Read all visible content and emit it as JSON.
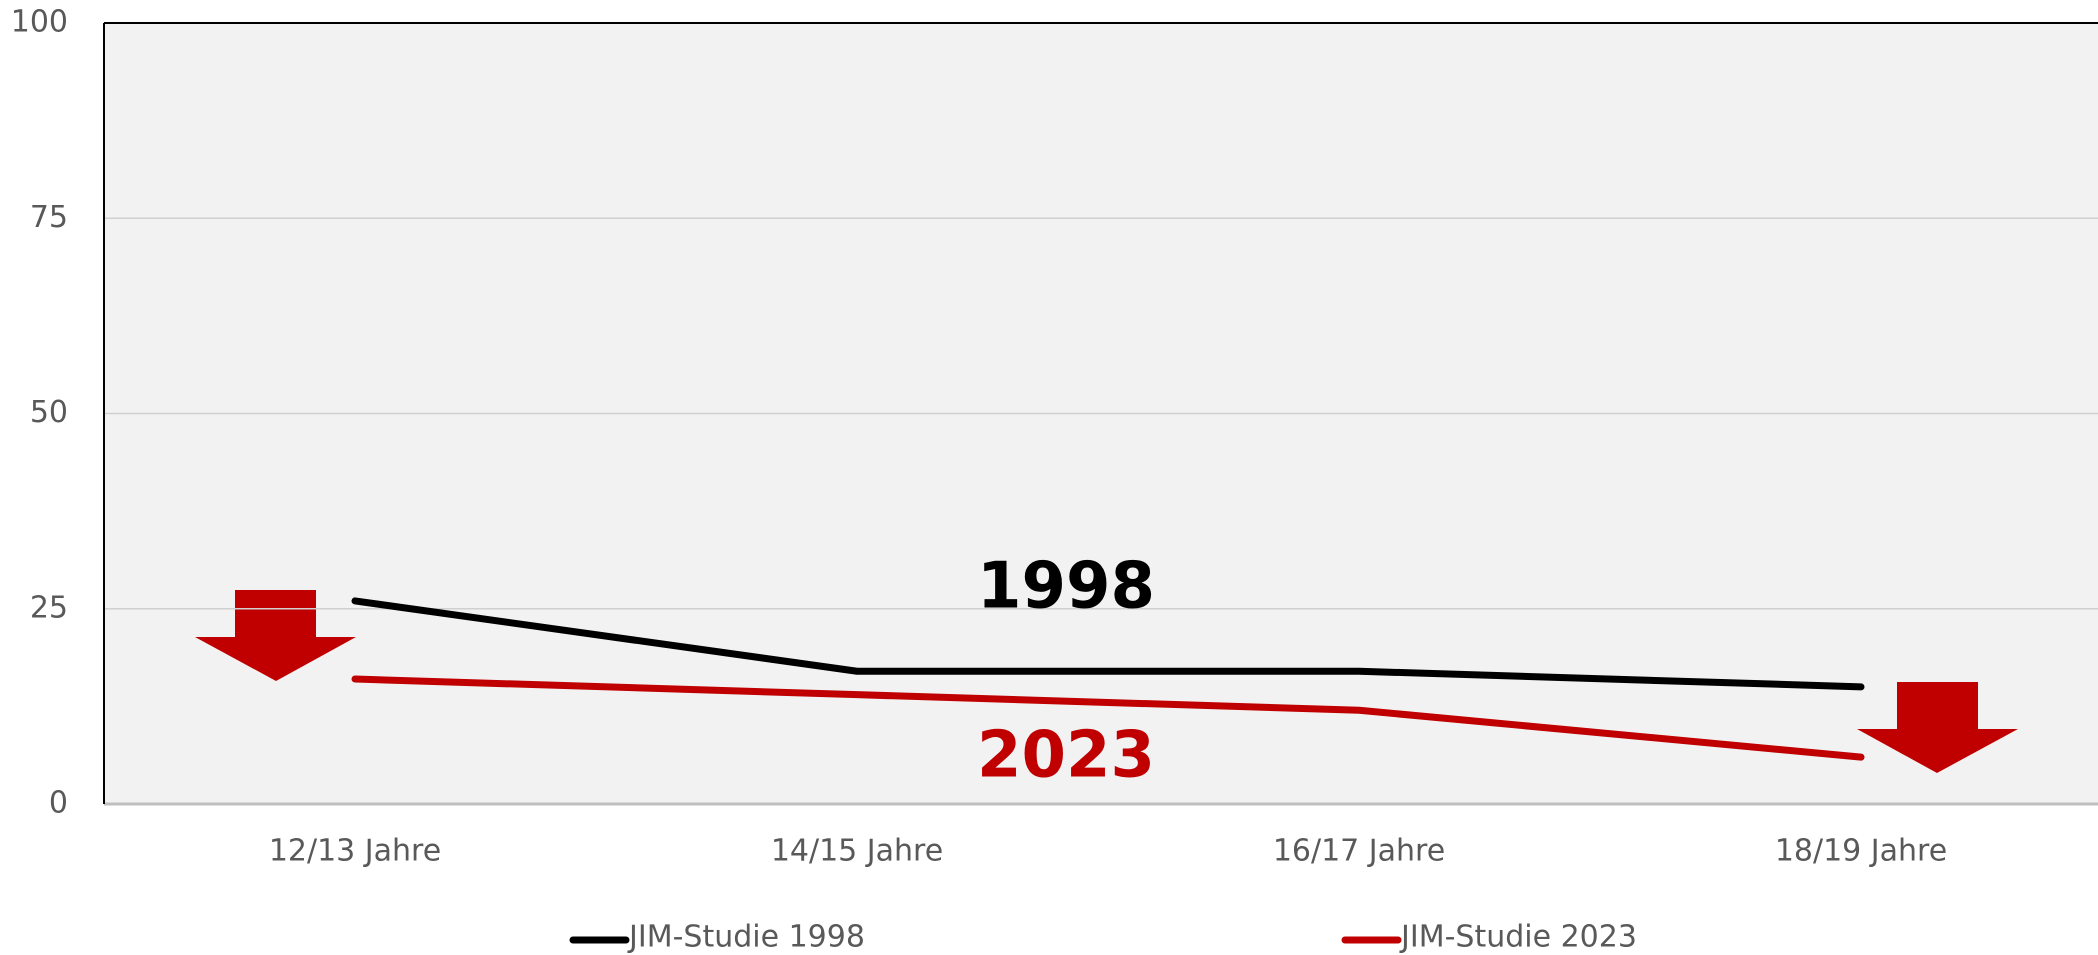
{
  "chart_data": {
    "type": "line",
    "categories": [
      "12/13 Jahre",
      "14/15 Jahre",
      "16/17 Jahre",
      "18/19 Jahre"
    ],
    "series": [
      {
        "name": "JIM-Studie 1998",
        "color": "#000000",
        "values": [
          26,
          17,
          17,
          15
        ]
      },
      {
        "name": "JIM-Studie 2023",
        "color": "#c00000",
        "values": [
          16,
          14,
          12,
          6
        ]
      }
    ],
    "annotations": [
      {
        "text": "1998",
        "color": "#000000"
      },
      {
        "text": "2023",
        "color": "#c00000"
      }
    ],
    "ylim": [
      0,
      100
    ],
    "yticks": [
      0,
      25,
      50,
      75,
      100
    ],
    "grid": true,
    "legend": "bottom"
  }
}
